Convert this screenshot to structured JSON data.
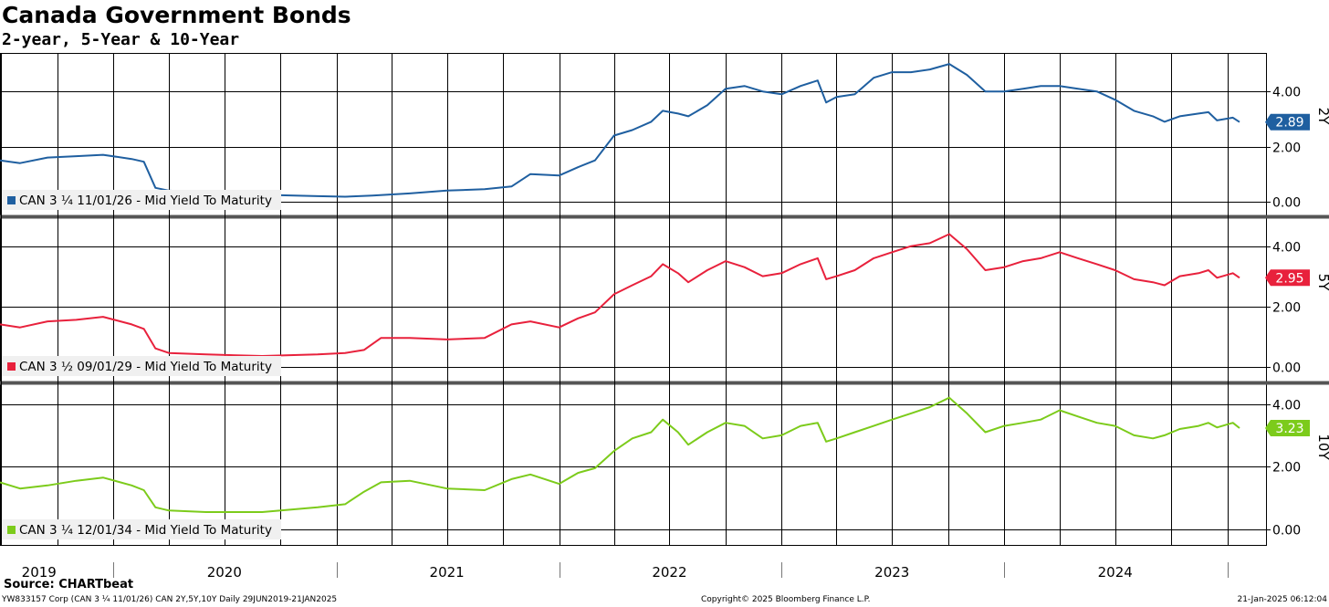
{
  "header": {
    "title": "Canada Government Bonds",
    "subtitle": "2-year, 5-Year & 10-Year"
  },
  "footer": {
    "source": "Source: CHARTbeat",
    "left": "YW833157 Corp (CAN 3 ¼ 11/01/26) CAN 2Y,5Y,10Y  Daily 29JUN2019-21JAN2025",
    "center": "Copyright© 2025 Bloomberg Finance L.P.",
    "right": "21-Jan-2025 06:12:04"
  },
  "chart_data": [
    {
      "type": "line",
      "panel": "2Y",
      "axis_label": "2Y",
      "legend": "CAN 3 ¼ 11/01/26 - Mid Yield To Maturity",
      "color": "#1f5fa0",
      "last_value_label": "2.89",
      "ylim": [
        -0.5,
        5.4
      ],
      "yticks": [
        "0.00",
        "2.00",
        "4.00"
      ],
      "ytick_values": [
        0,
        2,
        4
      ],
      "points": [
        [
          "2019-06-29",
          1.5
        ],
        [
          "2019-08-01",
          1.4
        ],
        [
          "2019-09-15",
          1.6
        ],
        [
          "2019-11-01",
          1.65
        ],
        [
          "2019-12-15",
          1.7
        ],
        [
          "2020-01-31",
          1.55
        ],
        [
          "2020-02-20",
          1.45
        ],
        [
          "2020-03-10",
          0.5
        ],
        [
          "2020-04-01",
          0.4
        ],
        [
          "2020-06-01",
          0.3
        ],
        [
          "2020-09-01",
          0.25
        ],
        [
          "2020-12-01",
          0.2
        ],
        [
          "2021-01-15",
          0.18
        ],
        [
          "2021-03-01",
          0.22
        ],
        [
          "2021-05-01",
          0.3
        ],
        [
          "2021-07-01",
          0.4
        ],
        [
          "2021-09-01",
          0.45
        ],
        [
          "2021-10-15",
          0.55
        ],
        [
          "2021-11-15",
          1.0
        ],
        [
          "2022-01-01",
          0.95
        ],
        [
          "2022-02-01",
          1.25
        ],
        [
          "2022-03-01",
          1.5
        ],
        [
          "2022-04-01",
          2.4
        ],
        [
          "2022-05-01",
          2.6
        ],
        [
          "2022-06-01",
          2.9
        ],
        [
          "2022-06-20",
          3.3
        ],
        [
          "2022-07-15",
          3.2
        ],
        [
          "2022-08-01",
          3.1
        ],
        [
          "2022-09-01",
          3.5
        ],
        [
          "2022-10-01",
          4.1
        ],
        [
          "2022-11-01",
          4.2
        ],
        [
          "2022-12-01",
          4.0
        ],
        [
          "2023-01-01",
          3.9
        ],
        [
          "2023-02-01",
          4.2
        ],
        [
          "2023-03-01",
          4.4
        ],
        [
          "2023-03-15",
          3.6
        ],
        [
          "2023-04-01",
          3.8
        ],
        [
          "2023-05-01",
          3.9
        ],
        [
          "2023-06-01",
          4.5
        ],
        [
          "2023-07-01",
          4.7
        ],
        [
          "2023-08-01",
          4.7
        ],
        [
          "2023-09-01",
          4.8
        ],
        [
          "2023-10-03",
          5.0
        ],
        [
          "2023-11-01",
          4.6
        ],
        [
          "2023-12-01",
          4.0
        ],
        [
          "2024-01-01",
          4.0
        ],
        [
          "2024-02-01",
          4.1
        ],
        [
          "2024-03-01",
          4.2
        ],
        [
          "2024-04-01",
          4.2
        ],
        [
          "2024-05-01",
          4.1
        ],
        [
          "2024-06-01",
          4.0
        ],
        [
          "2024-07-01",
          3.7
        ],
        [
          "2024-08-01",
          3.3
        ],
        [
          "2024-09-01",
          3.1
        ],
        [
          "2024-09-20",
          2.9
        ],
        [
          "2024-10-15",
          3.1
        ],
        [
          "2024-11-15",
          3.2
        ],
        [
          "2024-12-01",
          3.25
        ],
        [
          "2024-12-15",
          2.95
        ],
        [
          "2025-01-10",
          3.05
        ],
        [
          "2025-01-21",
          2.89
        ]
      ]
    },
    {
      "type": "line",
      "panel": "5Y",
      "axis_label": "5Y",
      "legend": "CAN 3 ½ 09/01/29 - Mid Yield To Maturity",
      "color": "#e8213c",
      "last_value_label": "2.95",
      "ylim": [
        -0.5,
        4.9
      ],
      "yticks": [
        "0.00",
        "2.00",
        "4.00"
      ],
      "ytick_values": [
        0,
        2,
        4
      ],
      "points": [
        [
          "2019-06-29",
          1.4
        ],
        [
          "2019-08-01",
          1.3
        ],
        [
          "2019-09-15",
          1.5
        ],
        [
          "2019-11-01",
          1.55
        ],
        [
          "2019-12-15",
          1.65
        ],
        [
          "2020-01-31",
          1.4
        ],
        [
          "2020-02-20",
          1.25
        ],
        [
          "2020-03-10",
          0.6
        ],
        [
          "2020-04-01",
          0.45
        ],
        [
          "2020-06-01",
          0.4
        ],
        [
          "2020-09-01",
          0.35
        ],
        [
          "2020-12-01",
          0.4
        ],
        [
          "2021-01-15",
          0.45
        ],
        [
          "2021-02-15",
          0.55
        ],
        [
          "2021-03-15",
          0.95
        ],
        [
          "2021-05-01",
          0.95
        ],
        [
          "2021-07-01",
          0.9
        ],
        [
          "2021-09-01",
          0.95
        ],
        [
          "2021-10-15",
          1.4
        ],
        [
          "2021-11-15",
          1.5
        ],
        [
          "2022-01-01",
          1.3
        ],
        [
          "2022-02-01",
          1.6
        ],
        [
          "2022-03-01",
          1.8
        ],
        [
          "2022-04-01",
          2.4
        ],
        [
          "2022-05-01",
          2.7
        ],
        [
          "2022-06-01",
          3.0
        ],
        [
          "2022-06-20",
          3.4
        ],
        [
          "2022-07-15",
          3.1
        ],
        [
          "2022-08-01",
          2.8
        ],
        [
          "2022-09-01",
          3.2
        ],
        [
          "2022-10-01",
          3.5
        ],
        [
          "2022-11-01",
          3.3
        ],
        [
          "2022-12-01",
          3.0
        ],
        [
          "2023-01-01",
          3.1
        ],
        [
          "2023-02-01",
          3.4
        ],
        [
          "2023-03-01",
          3.6
        ],
        [
          "2023-03-15",
          2.9
        ],
        [
          "2023-04-01",
          3.0
        ],
        [
          "2023-05-01",
          3.2
        ],
        [
          "2023-06-01",
          3.6
        ],
        [
          "2023-07-01",
          3.8
        ],
        [
          "2023-08-01",
          4.0
        ],
        [
          "2023-09-01",
          4.1
        ],
        [
          "2023-10-03",
          4.4
        ],
        [
          "2023-11-01",
          3.9
        ],
        [
          "2023-12-01",
          3.2
        ],
        [
          "2024-01-01",
          3.3
        ],
        [
          "2024-02-01",
          3.5
        ],
        [
          "2024-03-01",
          3.6
        ],
        [
          "2024-04-01",
          3.8
        ],
        [
          "2024-05-01",
          3.6
        ],
        [
          "2024-06-01",
          3.4
        ],
        [
          "2024-07-01",
          3.2
        ],
        [
          "2024-08-01",
          2.9
        ],
        [
          "2024-09-01",
          2.8
        ],
        [
          "2024-09-20",
          2.7
        ],
        [
          "2024-10-15",
          3.0
        ],
        [
          "2024-11-15",
          3.1
        ],
        [
          "2024-12-01",
          3.2
        ],
        [
          "2024-12-15",
          2.95
        ],
        [
          "2025-01-10",
          3.1
        ],
        [
          "2025-01-21",
          2.95
        ]
      ]
    },
    {
      "type": "line",
      "panel": "10Y",
      "axis_label": "10Y",
      "legend": "CAN 3 ¼ 12/01/34 - Mid Yield To Maturity",
      "color": "#7ccb1b",
      "last_value_label": "3.23",
      "ylim": [
        -0.5,
        4.6
      ],
      "yticks": [
        "0.00",
        "2.00",
        "4.00"
      ],
      "ytick_values": [
        0,
        2,
        4
      ],
      "points": [
        [
          "2019-06-29",
          1.5
        ],
        [
          "2019-08-01",
          1.3
        ],
        [
          "2019-09-15",
          1.4
        ],
        [
          "2019-11-01",
          1.55
        ],
        [
          "2019-12-15",
          1.65
        ],
        [
          "2020-01-31",
          1.4
        ],
        [
          "2020-02-20",
          1.25
        ],
        [
          "2020-03-10",
          0.7
        ],
        [
          "2020-04-01",
          0.6
        ],
        [
          "2020-06-01",
          0.55
        ],
        [
          "2020-09-01",
          0.55
        ],
        [
          "2020-12-01",
          0.7
        ],
        [
          "2021-01-15",
          0.8
        ],
        [
          "2021-02-15",
          1.2
        ],
        [
          "2021-03-15",
          1.5
        ],
        [
          "2021-05-01",
          1.55
        ],
        [
          "2021-07-01",
          1.3
        ],
        [
          "2021-09-01",
          1.25
        ],
        [
          "2021-10-15",
          1.6
        ],
        [
          "2021-11-15",
          1.75
        ],
        [
          "2022-01-01",
          1.45
        ],
        [
          "2022-02-01",
          1.8
        ],
        [
          "2022-03-01",
          1.95
        ],
        [
          "2022-04-01",
          2.5
        ],
        [
          "2022-05-01",
          2.9
        ],
        [
          "2022-06-01",
          3.1
        ],
        [
          "2022-06-20",
          3.5
        ],
        [
          "2022-07-15",
          3.1
        ],
        [
          "2022-08-01",
          2.7
        ],
        [
          "2022-09-01",
          3.1
        ],
        [
          "2022-10-01",
          3.4
        ],
        [
          "2022-11-01",
          3.3
        ],
        [
          "2022-12-01",
          2.9
        ],
        [
          "2023-01-01",
          3.0
        ],
        [
          "2023-02-01",
          3.3
        ],
        [
          "2023-03-01",
          3.4
        ],
        [
          "2023-03-15",
          2.8
        ],
        [
          "2023-04-01",
          2.9
        ],
        [
          "2023-05-01",
          3.1
        ],
        [
          "2023-06-01",
          3.3
        ],
        [
          "2023-07-01",
          3.5
        ],
        [
          "2023-08-01",
          3.7
        ],
        [
          "2023-09-01",
          3.9
        ],
        [
          "2023-10-03",
          4.2
        ],
        [
          "2023-11-01",
          3.7
        ],
        [
          "2023-12-01",
          3.1
        ],
        [
          "2024-01-01",
          3.3
        ],
        [
          "2024-02-01",
          3.4
        ],
        [
          "2024-03-01",
          3.5
        ],
        [
          "2024-04-01",
          3.8
        ],
        [
          "2024-05-01",
          3.6
        ],
        [
          "2024-06-01",
          3.4
        ],
        [
          "2024-07-01",
          3.3
        ],
        [
          "2024-08-01",
          3.0
        ],
        [
          "2024-09-01",
          2.9
        ],
        [
          "2024-09-20",
          3.0
        ],
        [
          "2024-10-15",
          3.2
        ],
        [
          "2024-11-15",
          3.3
        ],
        [
          "2024-12-01",
          3.4
        ],
        [
          "2024-12-15",
          3.25
        ],
        [
          "2025-01-10",
          3.4
        ],
        [
          "2025-01-21",
          3.23
        ]
      ]
    }
  ],
  "x_axis": {
    "year_labels": [
      "2019",
      "2020",
      "2021",
      "2022",
      "2023",
      "2024"
    ],
    "year_dates": [
      "2019-09-01",
      "2020-07-01",
      "2021-07-01",
      "2022-07-01",
      "2023-07-01",
      "2024-07-01"
    ],
    "divider_dates": [
      "2020-01-01",
      "2021-01-01",
      "2022-01-01",
      "2023-01-01",
      "2024-01-01",
      "2025-01-01"
    ],
    "gridline_dates": [
      "2019-07-01",
      "2019-10-01",
      "2020-01-01",
      "2020-04-01",
      "2020-07-01",
      "2020-10-01",
      "2021-01-01",
      "2021-04-01",
      "2021-07-01",
      "2021-10-01",
      "2022-01-01",
      "2022-04-01",
      "2022-07-01",
      "2022-10-01",
      "2023-01-01",
      "2023-04-01",
      "2023-07-01",
      "2023-10-01",
      "2024-01-01",
      "2024-04-01",
      "2024-07-01",
      "2024-10-01",
      "2025-01-01"
    ],
    "start": "2019-06-29",
    "end": "2025-01-21"
  }
}
